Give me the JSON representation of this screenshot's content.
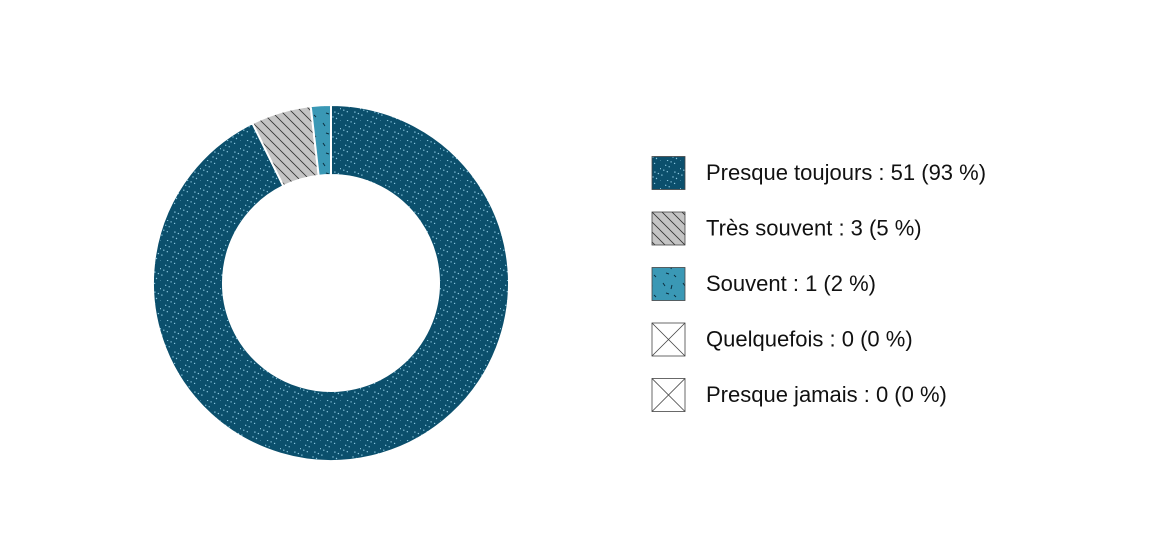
{
  "chart_data": {
    "type": "donut",
    "categories": [
      "Presque toujours : 51 (93 %)",
      "Très souvent : 3 (5 %)",
      "Souvent : 1 (2 %)",
      "Quelquefois : 0 (0 %)",
      "Presque jamais : 0 (0 %)"
    ],
    "values": [
      51,
      3,
      1,
      0,
      0
    ],
    "colors": [
      "#0b4f6c",
      "#c4c4c4",
      "#3a98b5",
      "#ffffff",
      "#ffffff"
    ],
    "patterns": [
      "dots",
      "hatch",
      "dashes",
      "cross",
      "cross"
    ]
  }
}
